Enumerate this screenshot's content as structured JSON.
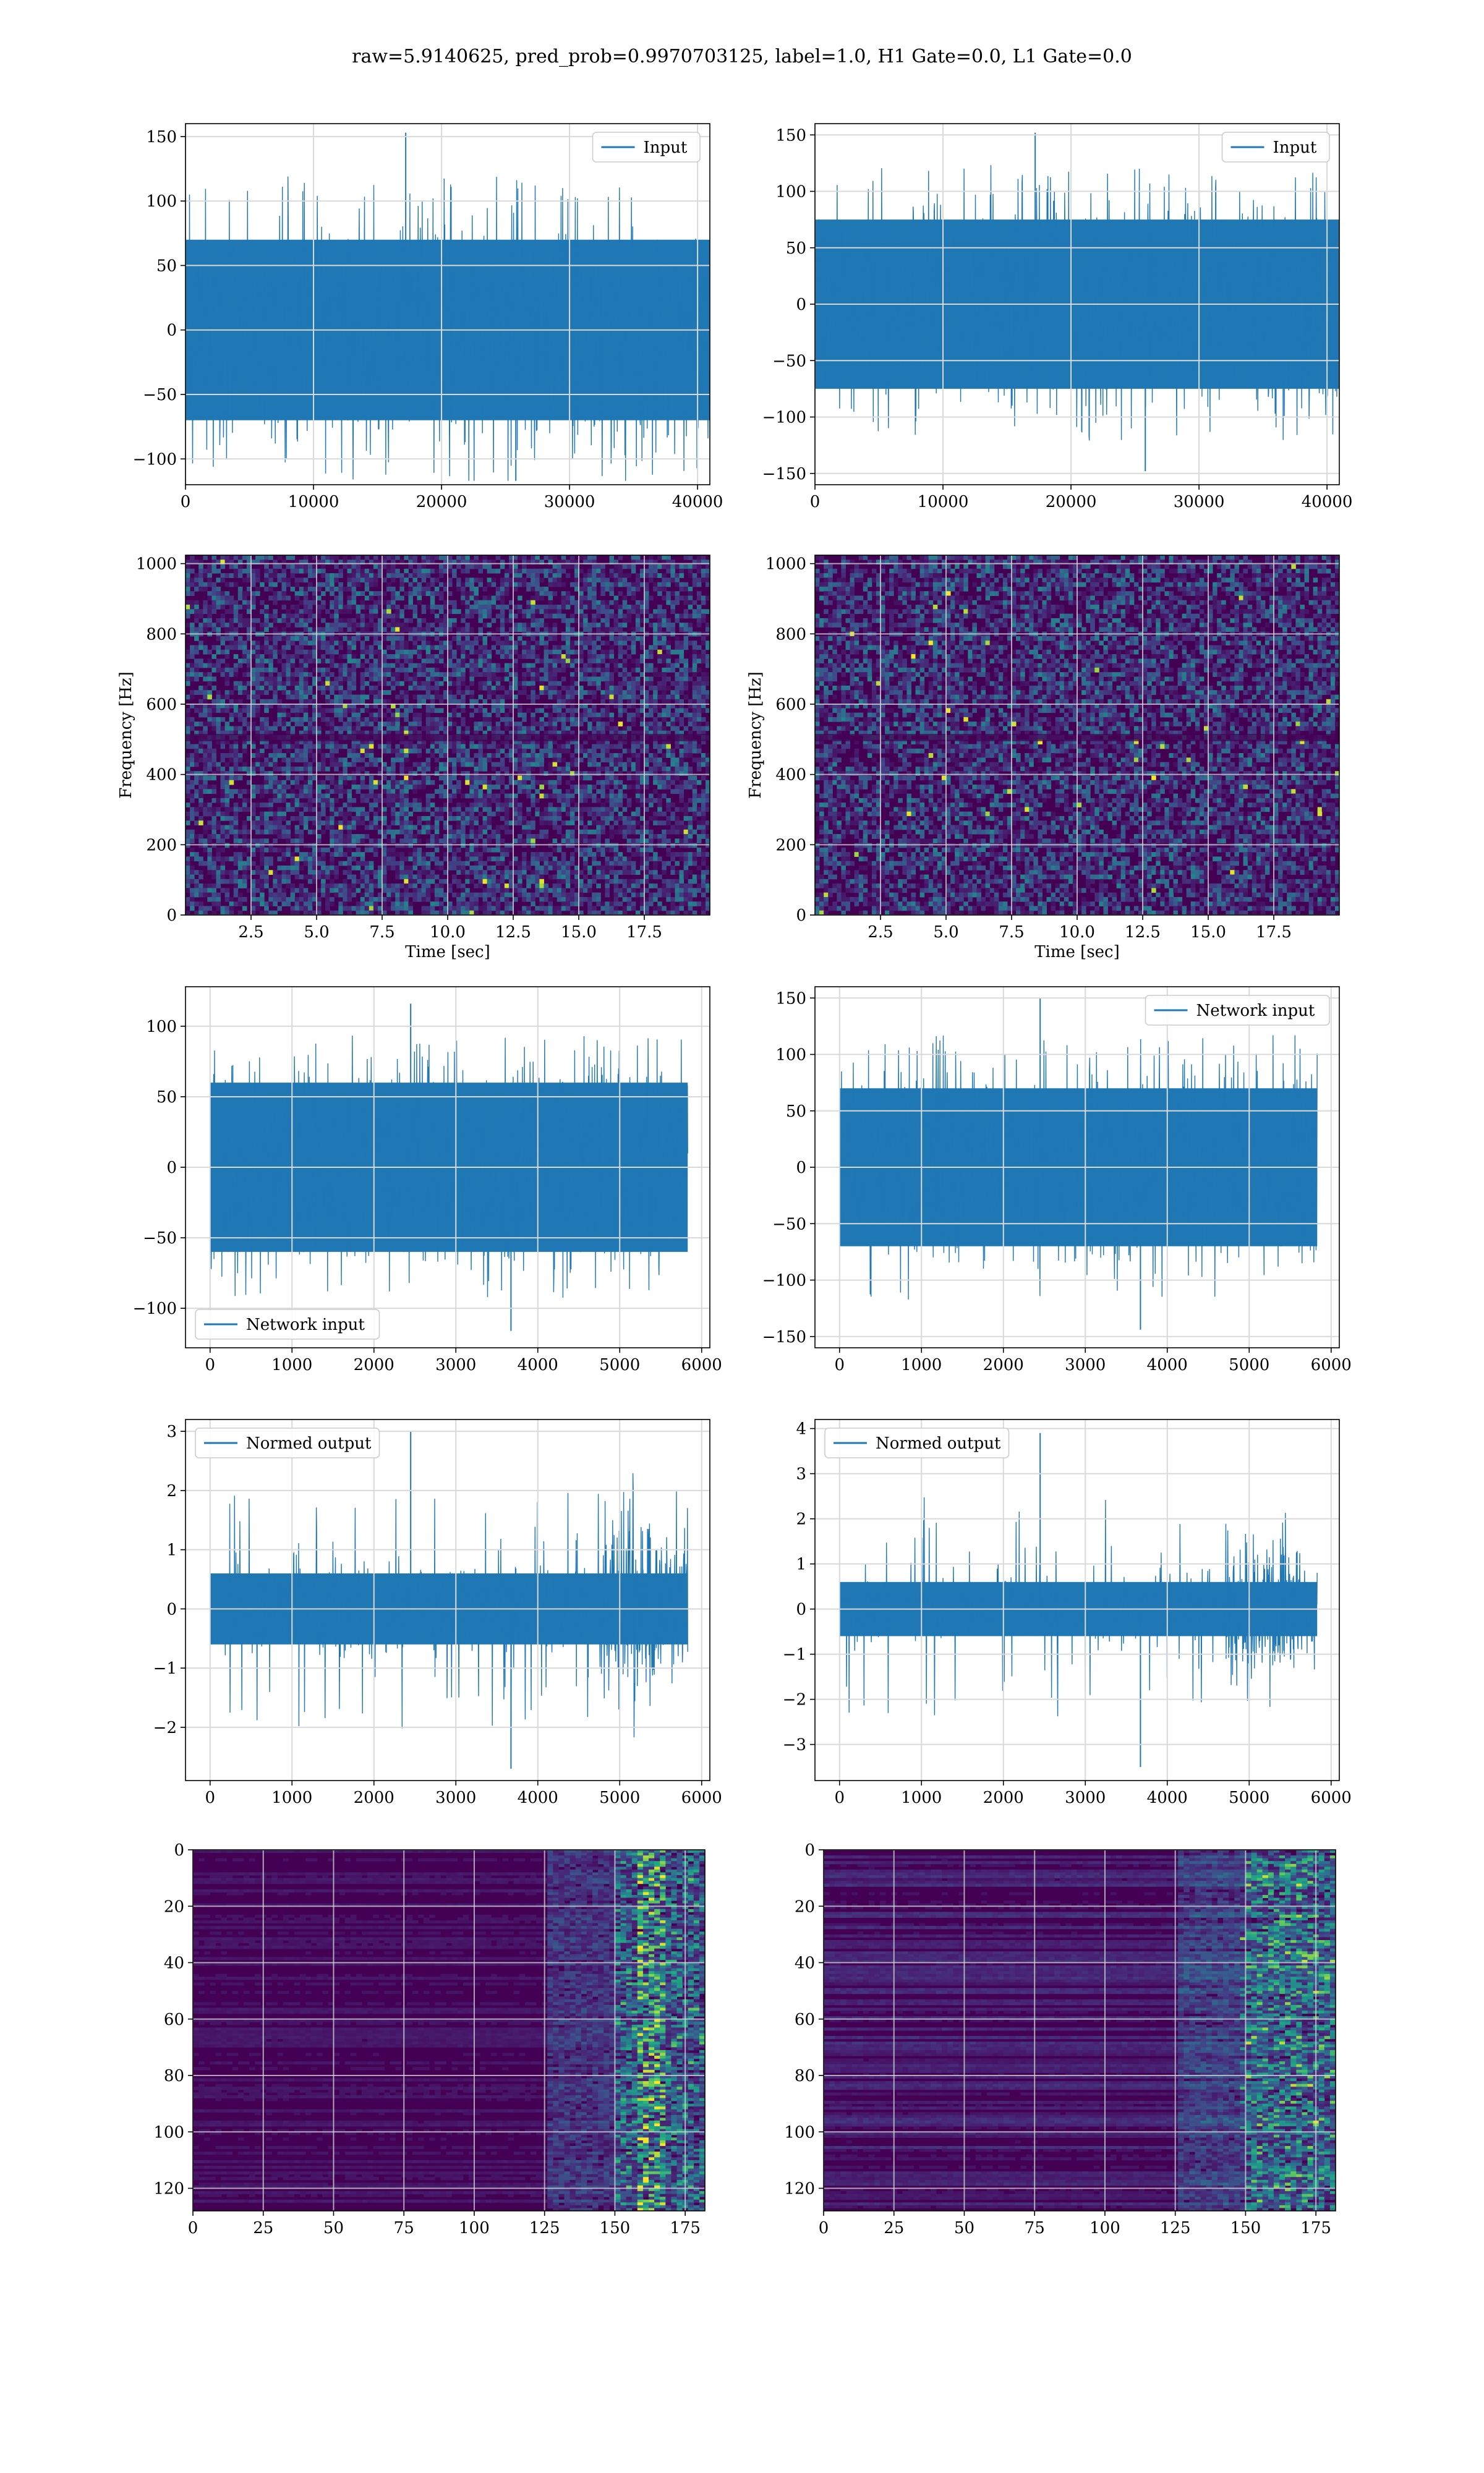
{
  "figure": {
    "suptitle": "raw=5.9140625, pred_prob=0.9970703125, label=1.0, H1 Gate=0.0, L1 Gate=0.0"
  },
  "colors": {
    "series": "#1f77b4",
    "grid": "#d9d9d9",
    "spine": "#000000",
    "viridis_low": "#440154",
    "viridis_mid": "#21918c",
    "viridis_high": "#fde725"
  },
  "chart_data": [
    {
      "id": "input-h1",
      "type": "line",
      "legend": {
        "label": "Input",
        "placement": "upper right"
      },
      "xlim": [
        0,
        40960
      ],
      "ylim": [
        -120,
        160
      ],
      "xticks": [
        0,
        10000,
        20000,
        30000,
        40000
      ],
      "yticks": [
        -100,
        -50,
        0,
        50,
        100,
        150
      ],
      "x_range": [
        0,
        40960
      ],
      "y_envelope": {
        "core": 70,
        "min": -117,
        "max": 153
      },
      "grid": true
    },
    {
      "id": "input-l1",
      "type": "line",
      "legend": {
        "label": "Input",
        "placement": "upper right"
      },
      "xlim": [
        0,
        40960
      ],
      "ylim": [
        -160,
        160
      ],
      "xticks": [
        0,
        10000,
        20000,
        30000,
        40000
      ],
      "yticks": [
        -150,
        -100,
        -50,
        0,
        50,
        100,
        150
      ],
      "x_range": [
        0,
        40960
      ],
      "y_envelope": {
        "core": 75,
        "min": -148,
        "max": 152
      },
      "grid": true
    },
    {
      "id": "spectrogram-h1",
      "type": "heatmap",
      "xlabel": "Time [sec]",
      "ylabel": "Frequency [Hz]",
      "xlim": [
        0,
        20
      ],
      "ylim": [
        0,
        1024
      ],
      "xticks": [
        2.5,
        5.0,
        7.5,
        10.0,
        12.5,
        15.0,
        17.5
      ],
      "yticks": [
        0,
        200,
        400,
        600,
        800,
        1000
      ],
      "colormap": "viridis",
      "grid": true
    },
    {
      "id": "spectrogram-l1",
      "type": "heatmap",
      "xlabel": "Time [sec]",
      "ylabel": "Frequency [Hz]",
      "xlim": [
        0,
        20
      ],
      "ylim": [
        0,
        1024
      ],
      "xticks": [
        2.5,
        5.0,
        7.5,
        10.0,
        12.5,
        15.0,
        17.5
      ],
      "yticks": [
        0,
        200,
        400,
        600,
        800,
        1000
      ],
      "colormap": "viridis",
      "grid": true
    },
    {
      "id": "network-input-h1",
      "type": "line",
      "legend": {
        "label": "Network input",
        "placement": "lower left"
      },
      "xlim": [
        -300,
        6100
      ],
      "ylim": [
        -128,
        128
      ],
      "xticks": [
        0,
        1000,
        2000,
        3000,
        4000,
        5000,
        6000
      ],
      "yticks": [
        -100,
        -50,
        0,
        50,
        100
      ],
      "x_range": [
        0,
        5830
      ],
      "y_envelope": {
        "core": 60,
        "min": -116,
        "max": 116
      },
      "grid": true
    },
    {
      "id": "network-input-l1",
      "type": "line",
      "legend": {
        "label": "Network input",
        "placement": "upper right"
      },
      "xlim": [
        -300,
        6100
      ],
      "ylim": [
        -160,
        160
      ],
      "xticks": [
        0,
        1000,
        2000,
        3000,
        4000,
        5000,
        6000
      ],
      "yticks": [
        -150,
        -100,
        -50,
        0,
        50,
        100,
        150
      ],
      "x_range": [
        0,
        5830
      ],
      "y_envelope": {
        "core": 70,
        "min": -144,
        "max": 150
      },
      "grid": true
    },
    {
      "id": "normed-output-h1",
      "type": "line",
      "legend": {
        "label": "Normed output",
        "placement": "upper left"
      },
      "xlim": [
        -300,
        6100
      ],
      "ylim": [
        -2.9,
        3.2
      ],
      "xticks": [
        0,
        1000,
        2000,
        3000,
        4000,
        5000,
        6000
      ],
      "yticks": [
        -2,
        -1,
        0,
        1,
        2,
        3
      ],
      "x_range": [
        0,
        5830
      ],
      "y_envelope": {
        "core": 0.6,
        "min": -2.7,
        "max": 3.0,
        "burst_start": 4750
      },
      "grid": true
    },
    {
      "id": "normed-output-l1",
      "type": "line",
      "legend": {
        "label": "Normed output",
        "placement": "upper left"
      },
      "xlim": [
        -300,
        6100
      ],
      "ylim": [
        -3.8,
        4.2
      ],
      "xticks": [
        0,
        1000,
        2000,
        3000,
        4000,
        5000,
        6000
      ],
      "yticks": [
        -3,
        -2,
        -1,
        0,
        1,
        2,
        3,
        4
      ],
      "x_range": [
        0,
        5830
      ],
      "y_envelope": {
        "core": 0.6,
        "min": -3.5,
        "max": 3.9,
        "burst_start": 4700
      },
      "grid": true
    },
    {
      "id": "feature-map-h1",
      "type": "heatmap",
      "xlim": [
        0,
        182
      ],
      "ylim": [
        128,
        0
      ],
      "xticks": [
        0,
        25,
        50,
        75,
        100,
        125,
        150,
        175
      ],
      "yticks": [
        0,
        20,
        40,
        60,
        80,
        100,
        120
      ],
      "colormap": "viridis",
      "grid": true
    },
    {
      "id": "feature-map-l1",
      "type": "heatmap",
      "xlim": [
        0,
        182
      ],
      "ylim": [
        128,
        0
      ],
      "xticks": [
        0,
        25,
        50,
        75,
        100,
        125,
        150,
        175
      ],
      "yticks": [
        0,
        20,
        40,
        60,
        80,
        100,
        120
      ],
      "colormap": "viridis",
      "grid": true
    }
  ]
}
